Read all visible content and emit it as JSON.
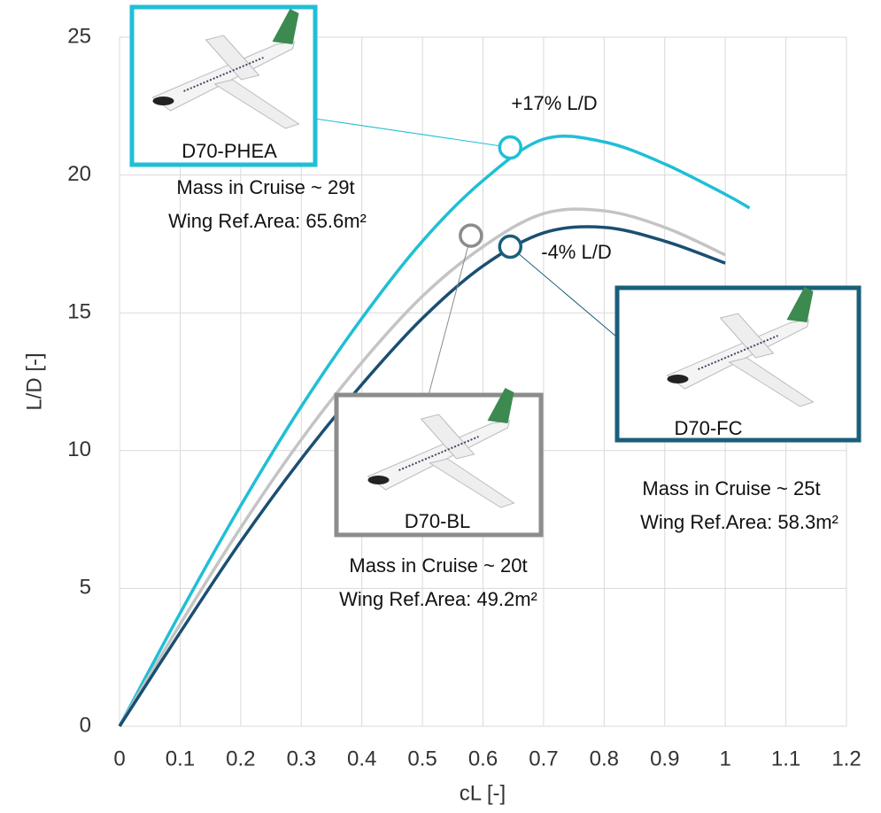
{
  "chart_data": {
    "type": "line",
    "x_label": "cL [-]",
    "y_label": "L/D [-]",
    "xlim": [
      0,
      1.2
    ],
    "ylim": [
      0,
      25
    ],
    "xticks": [
      0,
      0.1,
      0.2,
      0.3,
      0.4,
      0.5,
      0.6,
      0.7,
      0.8,
      0.9,
      1,
      1.1,
      1.2
    ],
    "yticks": [
      0,
      5,
      10,
      15,
      20,
      25
    ],
    "grid": true,
    "series": [
      {
        "color": "#1fbfd6",
        "x": [
          0,
          0.1,
          0.2,
          0.3,
          0.4,
          0.5,
          0.6,
          0.7,
          0.8,
          0.9,
          1.0,
          1.04
        ],
        "values": [
          0,
          4.1,
          8.0,
          11.6,
          14.8,
          17.6,
          19.8,
          21.3,
          21.2,
          20.4,
          19.3,
          18.8
        ]
      },
      {
        "color": "#c4c4c4",
        "x": [
          0,
          0.1,
          0.2,
          0.3,
          0.4,
          0.5,
          0.6,
          0.7,
          0.8,
          0.9,
          1.0
        ],
        "values": [
          0,
          3.7,
          7.2,
          10.4,
          13.2,
          15.6,
          17.4,
          18.6,
          18.7,
          18.1,
          17.1
        ]
      },
      {
        "color": "#1a4f72",
        "x": [
          0,
          0.1,
          0.2,
          0.3,
          0.4,
          0.5,
          0.6,
          0.7,
          0.8,
          0.9,
          1.0
        ],
        "values": [
          0,
          3.4,
          6.7,
          9.7,
          12.4,
          14.8,
          16.7,
          17.9,
          18.1,
          17.6,
          16.8
        ]
      }
    ],
    "annotations": [
      {
        "name": "D70-PHEA",
        "color": "#1fbfd6",
        "marker_x": 0.645,
        "marker_y": 21.0,
        "note": "+17% L/D",
        "lines": [
          "Mass in Cruise ~ 29t",
          "Wing Ref.Area: 65.6m²"
        ]
      },
      {
        "name": "D70-BL",
        "color": "#8c8c8c",
        "marker_x": 0.58,
        "marker_y": 17.8,
        "lines": [
          "Mass in Cruise ~ 20t",
          "Wing Ref.Area: 49.2m²"
        ]
      },
      {
        "name": "D70-FC",
        "color": "#1a5f7a",
        "marker_x": 0.645,
        "marker_y": 17.4,
        "note": "-4% L/D",
        "lines": [
          "Mass in Cruise ~ 25t",
          "Wing Ref.Area: 58.3m²"
        ]
      }
    ]
  }
}
